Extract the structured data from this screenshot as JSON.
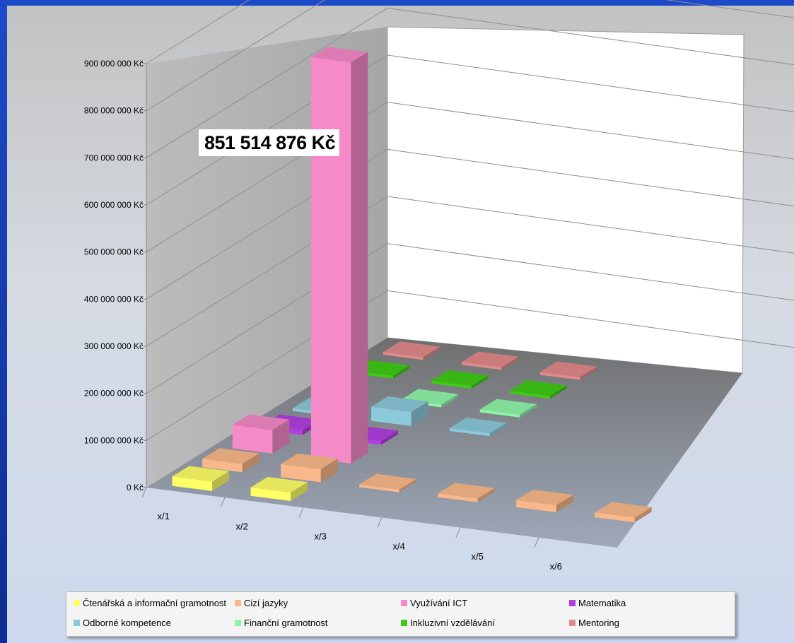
{
  "chart_data": {
    "type": "bar",
    "subtype": "3d-column",
    "categories": [
      "x/1",
      "x/2",
      "x/3",
      "x/4",
      "x/5",
      "x/6"
    ],
    "yticks": [
      "0 Kč",
      "100 000 000 Kč",
      "200 000 000 Kč",
      "300 000 000 Kč",
      "400 000 000 Kč",
      "500 000 000 Kč",
      "600 000 000 Kč",
      "700 000 000 Kč",
      "800 000 000 Kč",
      "900 000 000 Kč"
    ],
    "ylim": [
      0,
      900000000
    ],
    "grid": true,
    "legend_position": "bottom",
    "series": [
      {
        "name": "Čtenářská a informační gramotnost",
        "color": "#ffff66",
        "values": [
          20000000,
          18000000,
          0,
          0,
          0,
          0
        ]
      },
      {
        "name": "Cizí jazyky",
        "color": "#f9b88a",
        "values": [
          18000000,
          28000000,
          5000000,
          8000000,
          15000000,
          10000000
        ]
      },
      {
        "name": "Využívání ICT",
        "color": "#f58ac8",
        "values": [
          50000000,
          851514876,
          0,
          0,
          0,
          0
        ]
      },
      {
        "name": "Matematika",
        "color": "#b23ee0",
        "values": [
          10000000,
          8000000,
          0,
          0,
          0,
          0
        ]
      },
      {
        "name": "Odborné kompetence",
        "color": "#8cc9db",
        "values": [
          5000000,
          30000000,
          4000000,
          0,
          0,
          0
        ]
      },
      {
        "name": "Finanční gramotnost",
        "color": "#8ff5a8",
        "values": [
          0,
          5000000,
          5000000,
          0,
          0,
          0
        ]
      },
      {
        "name": "Inkluzivní vzdělávání",
        "color": "#3ecb16",
        "values": [
          5000000,
          4000000,
          5000000,
          0,
          0,
          0
        ]
      },
      {
        "name": "Mentoring",
        "color": "#e08a8a",
        "values": [
          3000000,
          3000000,
          3000000,
          0,
          0,
          0
        ]
      }
    ],
    "annotations": [
      "851 514 876 Kč"
    ]
  }
}
